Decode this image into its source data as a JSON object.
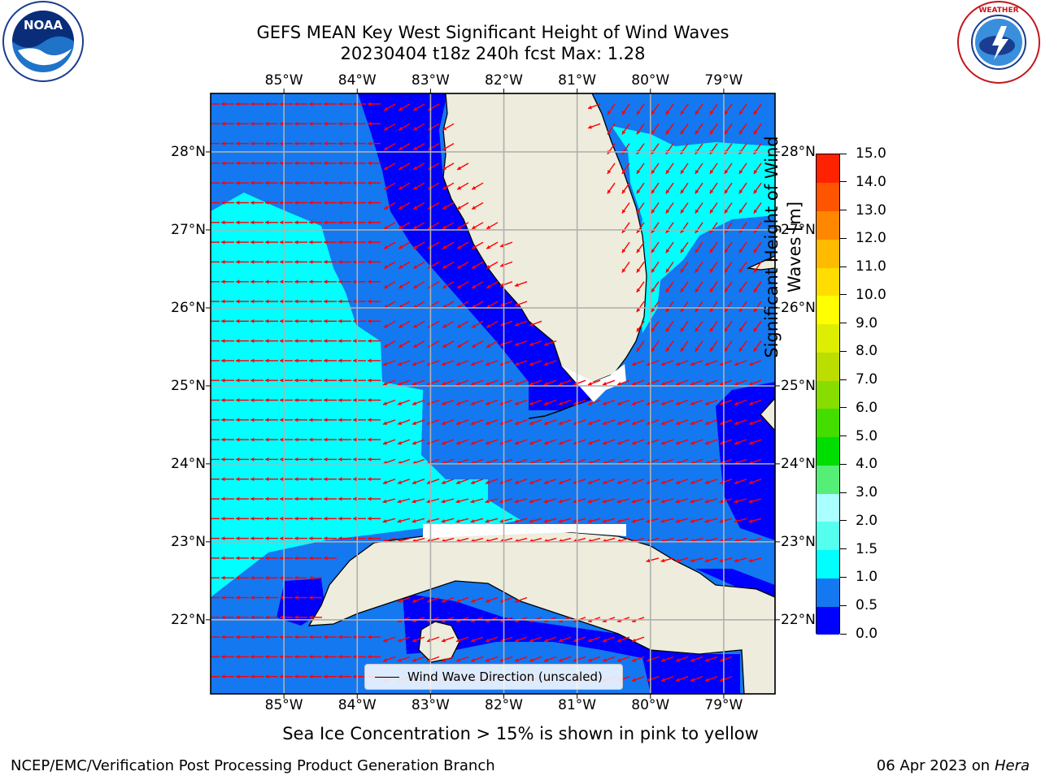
{
  "title": {
    "line1": "GEFS MEAN Key West Significant Height of Wind Waves",
    "line2": "20230404 t18z 240h fcst   Max: 1.28"
  },
  "logos": {
    "left": {
      "icon": "noaa-logo",
      "text": "NOAA"
    },
    "right": {
      "icon": "national-weather-service-logo"
    }
  },
  "map": {
    "lon_labels": [
      "85°W",
      "84°W",
      "83°W",
      "82°W",
      "81°W",
      "80°W",
      "79°W"
    ],
    "lat_labels": [
      "28°N",
      "27°N",
      "26°N",
      "25°N",
      "24°N",
      "23°N",
      "22°N"
    ],
    "lon_range": [
      -86.0,
      -78.3
    ],
    "lat_range": [
      21.05,
      28.75
    ],
    "grid": true,
    "colors": {
      "land": "#eeecdc",
      "band_0_0_5": "#0000ff",
      "band_0_5_1_0": "#1478f0",
      "band_1_0_1_5": "#00ffff",
      "arrow": "#ff0000",
      "gridline": "#b0b0b0"
    }
  },
  "colorbar": {
    "label_line1": "Significant Height of Wind",
    "label_line2": "Waves [m]",
    "ticks": [
      "0.0",
      "0.5",
      "1.0",
      "1.5",
      "2.0",
      "3.0",
      "4.0",
      "5.0",
      "6.0",
      "7.0",
      "8.0",
      "9.0",
      "10.0",
      "11.0",
      "12.0",
      "13.0",
      "14.0",
      "15.0"
    ],
    "colors": [
      "#0000ff",
      "#1478f0",
      "#00ffff",
      "#55ffee",
      "#aaffff",
      "#55ee77",
      "#00dd00",
      "#44dd00",
      "#88dd00",
      "#bbdd00",
      "#ddee00",
      "#ffff00",
      "#ffdd00",
      "#ffbb00",
      "#ff8800",
      "#ff5500",
      "#ff2200"
    ]
  },
  "legend": {
    "label": "Wind Wave Direction (unscaled)"
  },
  "footer": {
    "note": "Sea Ice Concentration > 15% is shown in pink to yellow",
    "credit_left": "NCEP/EMC/Verification Post Processing Product Generation Branch",
    "credit_right_date": "06 Apr 2023 on",
    "credit_right_host": "Hera"
  }
}
